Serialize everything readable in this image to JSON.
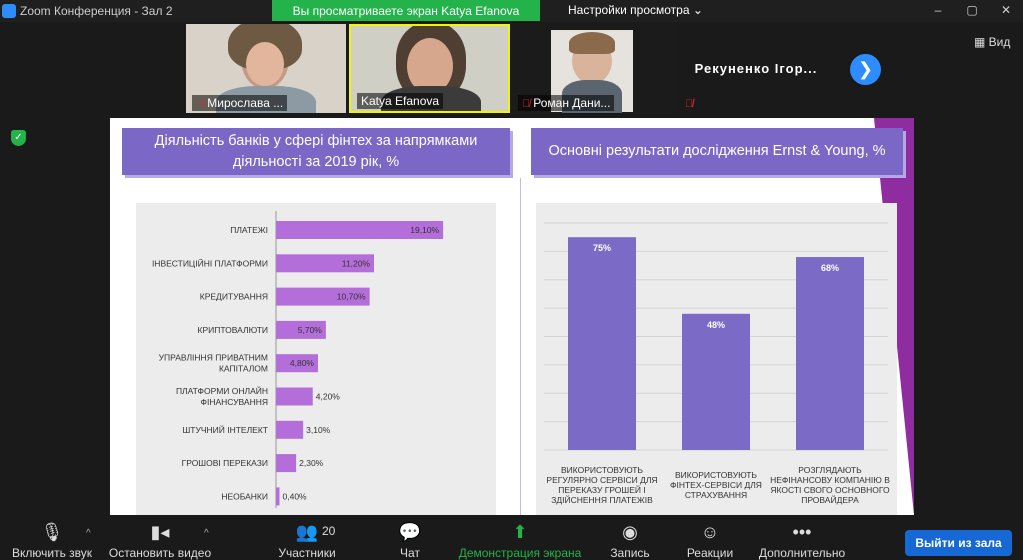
{
  "window": {
    "title": "Zoom Конференция - Зал 2",
    "controls": [
      "–",
      "▢",
      "✕"
    ]
  },
  "share_banner": "Вы просматриваете экран Katya Efanova",
  "view_settings": "Настройки просмотра ⌄",
  "view_button": "Вид",
  "participants": [
    {
      "name": "Мирослава ...",
      "muted": true
    },
    {
      "name": "Katya Efanova",
      "muted": false
    },
    {
      "name": "Роман Дани...",
      "muted": true
    },
    {
      "name": "Рекуненко Ігор...",
      "muted": true
    }
  ],
  "slide": {
    "left_title": "Діяльність банків у сфері фінтех за напрямками діяльності за 2019 рік, %",
    "right_title": "Основні результати дослідження Ernst & Young, %",
    "colors": {
      "bar_h": "#b36ed9",
      "bar_v": "#7b6bc6",
      "header": "#7b68c6",
      "accent": "#8f2ca0"
    }
  },
  "chart_data": [
    {
      "type": "bar",
      "orientation": "horizontal",
      "categories": [
        "ПЛАТЕЖІ",
        "ІНВЕСТИЦІЙНІ ПЛАТФОРМИ",
        "КРЕДИТУВАННЯ",
        "КРИПТОВАЛЮТИ",
        "УПРАВЛІННЯ ПРИВАТНИМ КАПІТАЛОМ",
        "ПЛАТФОРМИ ОНЛАЙН ФІНАНСУВАННЯ",
        "ШТУЧНИЙ ІНТЕЛЕКТ",
        "ГРОШОВІ ПЕРЕКАЗИ",
        "НЕОБАНКИ"
      ],
      "values": [
        19.1,
        11.2,
        10.7,
        5.7,
        4.8,
        4.2,
        3.1,
        2.3,
        0.4
      ],
      "value_labels": [
        "19,10%",
        "11,20%",
        "10,70%",
        "5,70%",
        "4,80%",
        "4,20%",
        "3,10%",
        "2,30%",
        "0,40%"
      ]
    },
    {
      "type": "bar",
      "categories": [
        "ВИКОРИСТОВУЮТЬ РЕГУЛЯРНО СЕРВІСИ ДЛЯ ПЕРЕКАЗУ ГРОШЕЙ І ЗДІЙСНЕННЯ ПЛАТЕЖІВ",
        "ВИКОРИСТОВУЮТЬ ФІНТЕХ-СЕРВІСИ ДЛЯ СТРАХУВАННЯ",
        "РОЗГЛЯДАЮТЬ НЕФІНАНСОВУ КОМПАНІЮ В ЯКОСТІ СВОГО ОСНОВНОГО ПРОВАЙДЕРА"
      ],
      "values": [
        75,
        48,
        68
      ],
      "value_labels": [
        "75%",
        "48%",
        "68%"
      ],
      "ylim": [
        0,
        80
      ],
      "grid": true
    }
  ],
  "toolbar": {
    "mute": "Включить звук",
    "video": "Остановить видео",
    "participants": "Участники",
    "participants_count": "20",
    "chat": "Чат",
    "share": "Демонстрация экрана",
    "record": "Запись",
    "reactions": "Реакции",
    "more": "Дополнительно",
    "leave": "Выйти из зала"
  }
}
